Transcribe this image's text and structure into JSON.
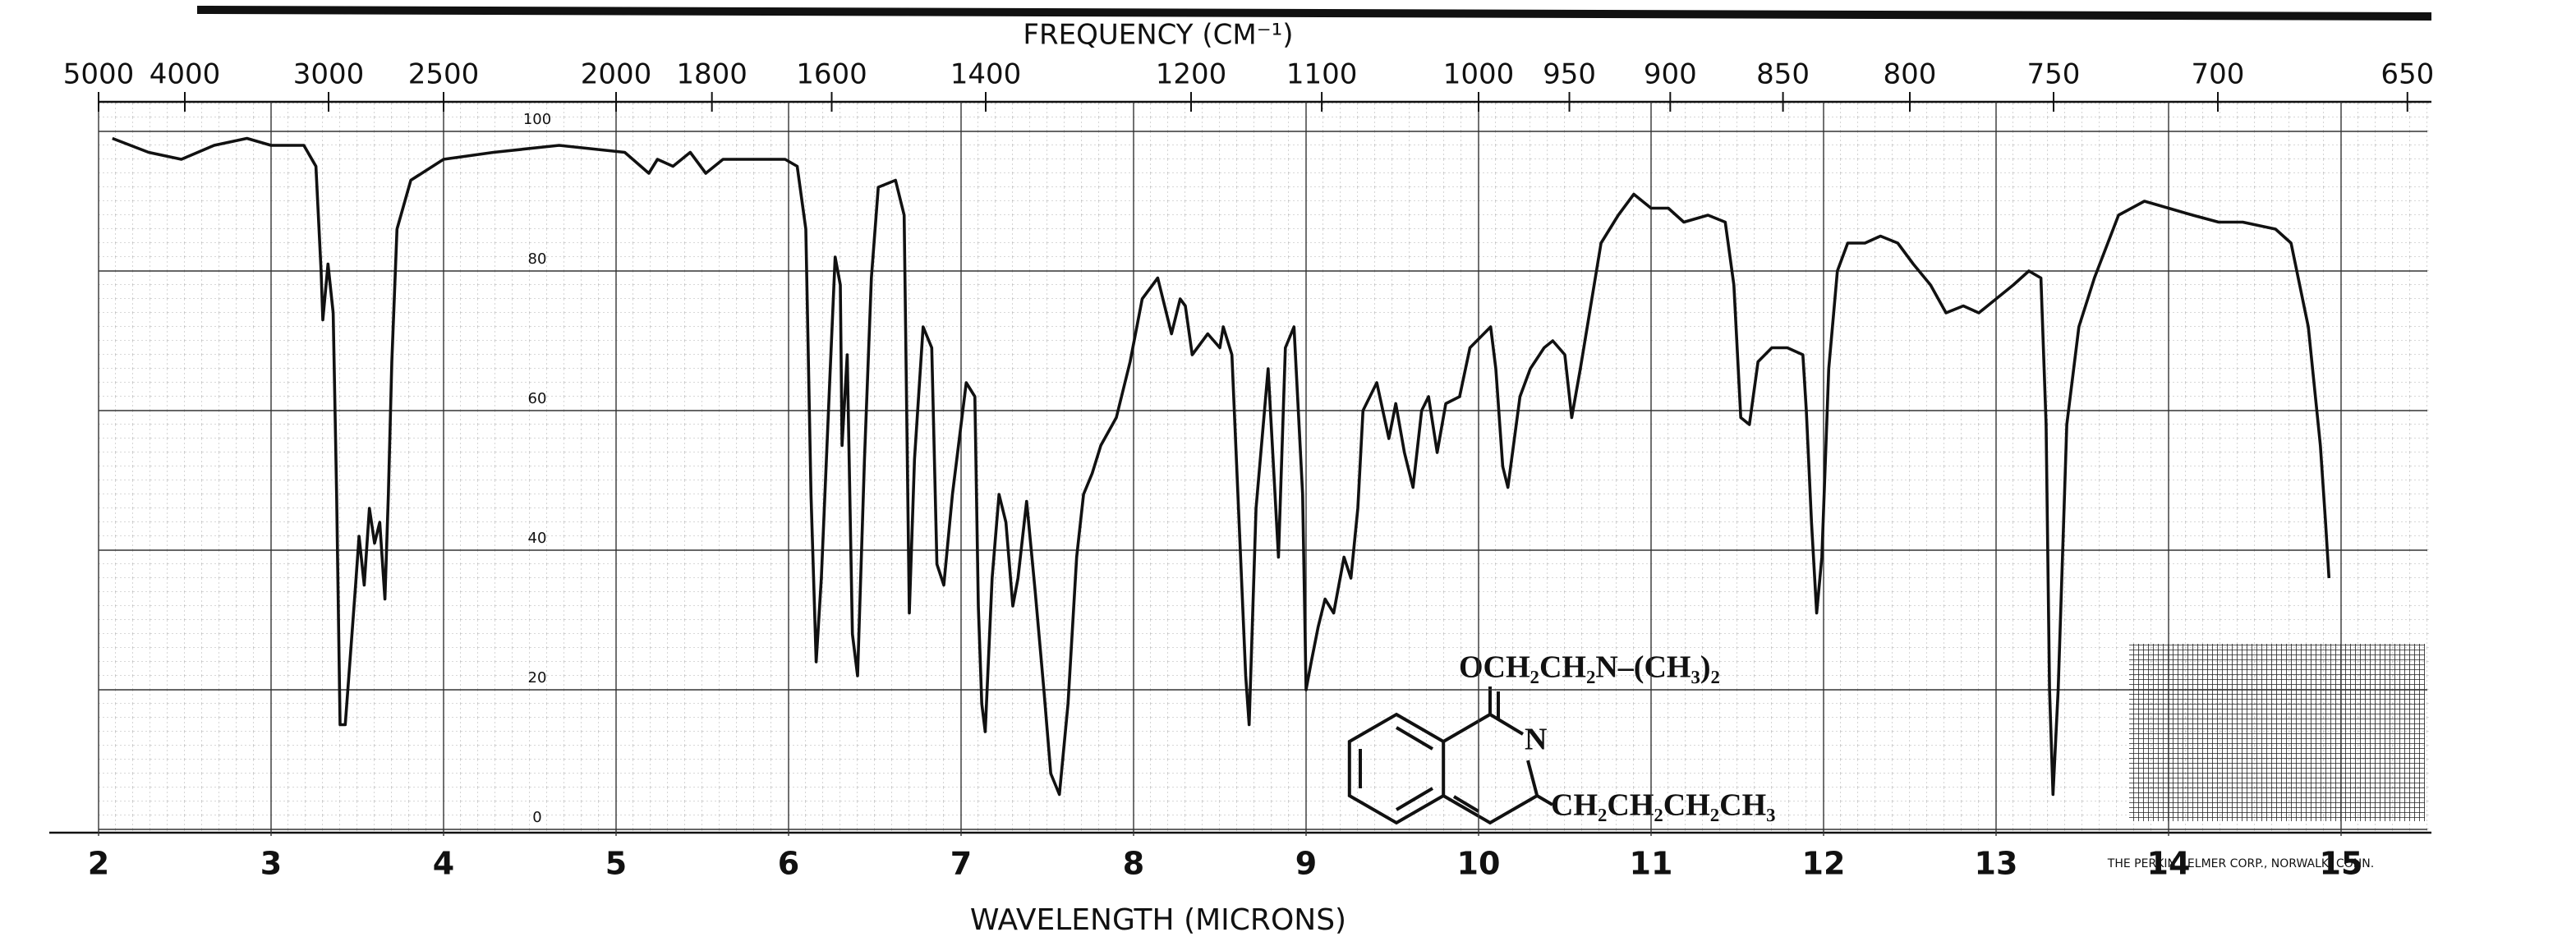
{
  "chart_data": {
    "type": "line",
    "title": "FREQUENCY (CM⁻¹)",
    "x_label": "WAVELENGTH (MICRONS)",
    "x2ticks": [
      5000,
      4000,
      3000,
      2500,
      2000,
      1800,
      1600,
      1400,
      1200,
      1100,
      1000,
      950,
      900,
      850,
      800,
      750,
      700,
      650
    ],
    "xlim": [
      2,
      15.5
    ],
    "xticks": [
      2,
      3,
      4,
      5,
      6,
      7,
      8,
      9,
      10,
      11,
      12,
      13,
      14,
      15
    ],
    "ylim": [
      0,
      100
    ],
    "yticks": [
      0,
      20,
      40,
      60,
      80,
      100
    ],
    "grid": true,
    "color": "#111111",
    "x": [
      2.08,
      2.29,
      2.48,
      2.67,
      2.86,
      3.0,
      3.19,
      3.26,
      3.29,
      3.3,
      3.33,
      3.36,
      3.38,
      3.4,
      3.43,
      3.46,
      3.49,
      3.51,
      3.54,
      3.57,
      3.6,
      3.63,
      3.66,
      3.68,
      3.7,
      3.73,
      3.81,
      4.0,
      4.29,
      4.67,
      5.05,
      5.19,
      5.24,
      5.33,
      5.43,
      5.52,
      5.62,
      5.81,
      5.98,
      6.05,
      6.1,
      6.13,
      6.16,
      6.19,
      6.24,
      6.27,
      6.3,
      6.31,
      6.34,
      6.37,
      6.4,
      6.44,
      6.48,
      6.52,
      6.62,
      6.67,
      6.7,
      6.73,
      6.78,
      6.83,
      6.86,
      6.9,
      6.95,
      7.03,
      7.08,
      7.1,
      7.12,
      7.14,
      7.18,
      7.22,
      7.26,
      7.3,
      7.33,
      7.38,
      7.43,
      7.48,
      7.52,
      7.57,
      7.62,
      7.67,
      7.71,
      7.76,
      7.81,
      7.9,
      7.98,
      8.05,
      8.14,
      8.22,
      8.27,
      8.3,
      8.34,
      8.43,
      8.5,
      8.52,
      8.57,
      8.65,
      8.67,
      8.71,
      8.78,
      8.84,
      8.88,
      8.93,
      8.98,
      9.0,
      9.03,
      9.07,
      9.11,
      9.16,
      9.22,
      9.26,
      9.3,
      9.33,
      9.41,
      9.48,
      9.52,
      9.57,
      9.62,
      9.67,
      9.71,
      9.76,
      9.81,
      9.89,
      9.95,
      10.03,
      10.07,
      10.1,
      10.14,
      10.17,
      10.24,
      10.3,
      10.38,
      10.43,
      10.5,
      10.54,
      10.59,
      10.65,
      10.71,
      10.81,
      10.9,
      11.0,
      11.1,
      11.19,
      11.33,
      11.43,
      11.48,
      11.52,
      11.57,
      11.62,
      11.7,
      11.79,
      11.88,
      11.9,
      11.93,
      11.96,
      11.99,
      12.03,
      12.08,
      12.14,
      12.24,
      12.33,
      12.43,
      12.52,
      12.62,
      12.71,
      12.81,
      12.9,
      13.0,
      13.1,
      13.19,
      13.26,
      13.29,
      13.31,
      13.33,
      13.36,
      13.41,
      13.48,
      13.57,
      13.71,
      13.86,
      14.0,
      14.14,
      14.29,
      14.43,
      14.62,
      14.71,
      14.81,
      14.88,
      14.91,
      14.93
    ],
    "values": [
      99,
      97,
      96,
      98,
      99,
      98,
      98,
      95,
      80,
      73,
      81,
      74,
      48,
      15,
      15,
      25,
      35,
      42,
      35,
      46,
      41,
      44,
      33,
      48,
      67,
      86,
      93,
      96,
      97,
      98,
      97,
      94,
      96,
      95,
      97,
      94,
      96,
      96,
      96,
      95,
      86,
      48,
      24,
      36,
      65,
      82,
      78,
      55,
      68,
      28,
      22,
      53,
      79,
      92,
      93,
      88,
      31,
      53,
      72,
      69,
      38,
      35,
      48,
      64,
      62,
      32,
      18,
      14,
      36,
      48,
      44,
      32,
      36,
      47,
      34,
      20,
      8,
      5,
      18,
      39,
      48,
      51,
      55,
      59,
      67,
      76,
      79,
      71,
      76,
      75,
      68,
      71,
      69,
      72,
      68,
      22,
      15,
      46,
      66,
      39,
      69,
      72,
      48,
      20,
      24,
      29,
      33,
      31,
      39,
      36,
      46,
      60,
      64,
      56,
      61,
      54,
      49,
      60,
      62,
      54,
      61,
      62,
      69,
      71,
      72,
      66,
      52,
      49,
      62,
      66,
      69,
      70,
      68,
      59,
      66,
      75,
      84,
      88,
      91,
      89,
      89,
      87,
      88,
      87,
      78,
      59,
      58,
      67,
      69,
      69,
      68,
      60,
      44,
      31,
      39,
      66,
      80,
      84,
      84,
      85,
      84,
      81,
      78,
      74,
      75,
      74,
      76,
      78,
      80,
      79,
      58,
      20,
      5,
      20,
      58,
      72,
      79,
      88,
      90,
      89,
      88,
      87,
      87,
      86,
      84,
      72,
      55,
      44,
      36
    ],
    "annotations": [
      "OCH₂CH₂N–(CH₃)₂",
      "N",
      "CH₂CH₂CH₂CH₃",
      "THE PERKIN - ELMER CORP., NORWALK, CONN."
    ]
  }
}
